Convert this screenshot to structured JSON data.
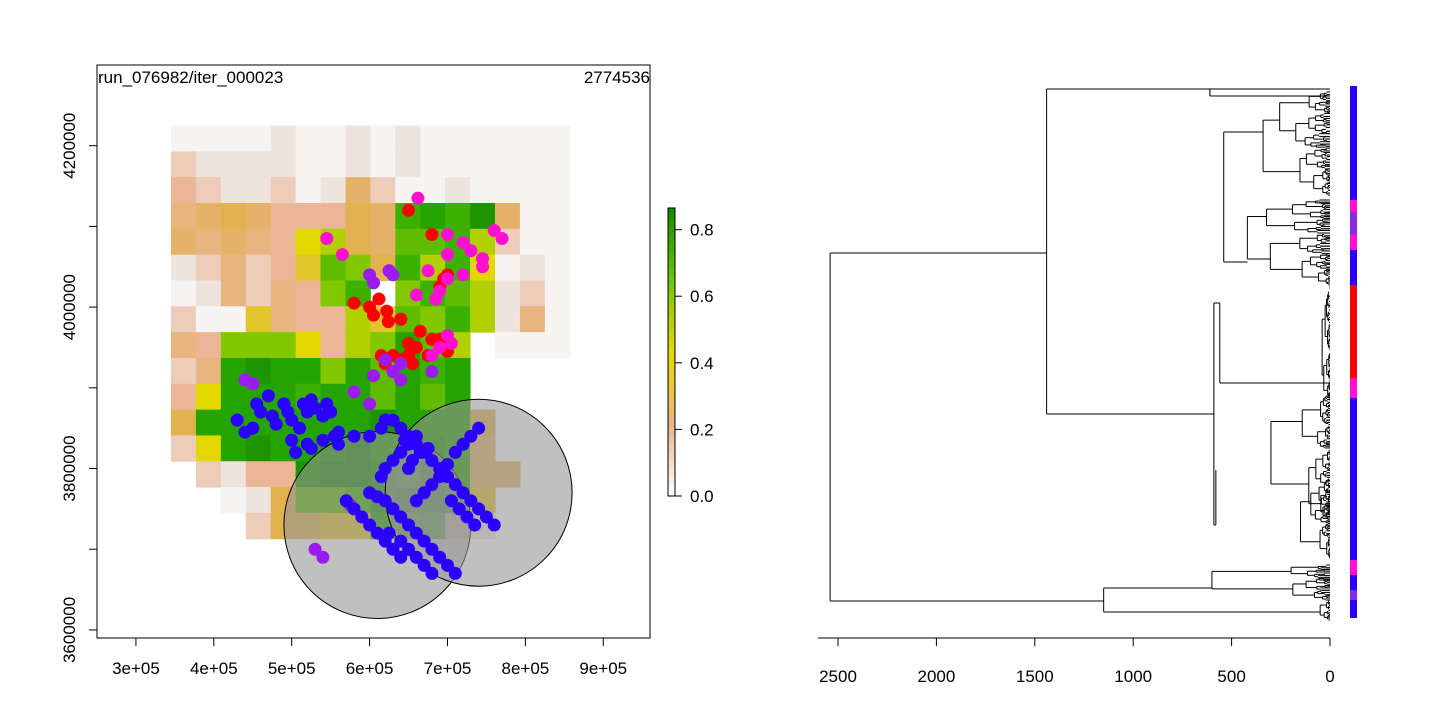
{
  "map_panel": {
    "label_left": "run_076982/iter_000023",
    "label_right": "2774536",
    "x_ticks": [
      "3e+05",
      "4e+05",
      "5e+05",
      "6e+05",
      "7e+05",
      "8e+05",
      "9e+05"
    ],
    "y_ticks": [
      "3600000",
      "3800000",
      "4000000",
      "4200000"
    ],
    "legend_ticks": [
      "0.0",
      "0.2",
      "0.4",
      "0.6",
      "0.8"
    ],
    "colors": {
      "low": "#f2f2f2",
      "mid_low": "#e8b68c",
      "mid": "#e6d800",
      "high": "#1a8a00"
    }
  },
  "dendro_panel": {
    "x_ticks": [
      "2500",
      "2000",
      "1500",
      "1000",
      "500",
      "0"
    ],
    "bar_colors": [
      "#2200ff",
      "#ff0000",
      "#ff00cc",
      "#8a2be2"
    ]
  },
  "chart_data": [
    {
      "type": "heatmap",
      "title": "",
      "xlim": [
        250000,
        960000
      ],
      "ylim": [
        3590000,
        4300000
      ],
      "cell_size": [
        32000,
        32000
      ],
      "x_origin": 345000,
      "y_top": 4225000,
      "value_range": [
        0,
        0.85
      ],
      "grid": [
        "0000000000000000",
        "0000000000000000",
        "0000000000000000",
        "0000000000000000",
        "0000000000000000",
        "0000000000000000",
        "0000000000000000",
        "0000000000000000",
        "0000000000000000",
        "0000000000000000",
        "0000000000000000",
        "0000000000000000",
        "0000000000000000",
        "0000000000000000",
        "0000000000000000",
        "0000000000000000"
      ],
      "cells": [
        [
          0.05,
          0.05,
          0.05,
          0.05,
          0.1,
          0.05,
          0.05,
          0.1,
          0.05,
          0.1,
          0.05,
          0.05,
          0.05,
          0.05,
          0.05,
          0.05
        ],
        [
          0.15,
          0.1,
          0.1,
          0.1,
          0.1,
          0.05,
          0.05,
          0.1,
          0.05,
          0.1,
          0.05,
          0.05,
          0.05,
          0.05,
          0.05,
          0.05
        ],
        [
          0.2,
          0.15,
          0.1,
          0.1,
          0.15,
          0.05,
          0.1,
          0.3,
          0.15,
          0.05,
          0.05,
          0.1,
          0.05,
          0.05,
          0.05,
          0.05
        ],
        [
          0.25,
          0.3,
          0.35,
          0.3,
          0.2,
          0.2,
          0.2,
          0.35,
          0.3,
          0.65,
          0.7,
          0.65,
          0.75,
          0.3,
          0.05,
          0.05
        ],
        [
          0.3,
          0.25,
          0.3,
          0.25,
          0.2,
          0.45,
          0.5,
          0.35,
          0.3,
          0.6,
          0.6,
          0.65,
          0.5,
          0.15,
          0.05,
          0.05
        ],
        [
          0.1,
          0.15,
          0.25,
          0.15,
          0.2,
          0.4,
          0.6,
          0.55,
          0.35,
          0.65,
          0.5,
          0.65,
          0.45,
          0.05,
          0.1,
          0.05
        ],
        [
          0.05,
          0.1,
          0.25,
          0.15,
          0.25,
          0.2,
          0.55,
          0.65,
          0.0,
          0.55,
          0.65,
          0.6,
          0.5,
          0.1,
          0.15,
          0.05
        ],
        [
          0.15,
          0.05,
          0.05,
          0.4,
          0.25,
          0.2,
          0.2,
          0.5,
          0.4,
          0.6,
          0.55,
          0.65,
          0.5,
          0.1,
          0.25,
          0.05
        ],
        [
          0.25,
          0.2,
          0.55,
          0.55,
          0.55,
          0.45,
          0.2,
          0.5,
          0.55,
          0.7,
          0.6,
          0.5,
          0.0,
          0.05,
          0.05,
          0.05
        ],
        [
          0.15,
          0.25,
          0.7,
          0.75,
          0.7,
          0.7,
          0.55,
          0.7,
          0.6,
          0.7,
          0.65,
          0.7,
          0.0,
          0.0,
          0.0,
          0.0
        ],
        [
          0.2,
          0.45,
          0.7,
          0.7,
          0.7,
          0.65,
          0.7,
          0.7,
          0.6,
          0.7,
          0.6,
          0.7,
          0.0,
          0.0,
          0.0,
          0.0
        ],
        [
          0.35,
          0.7,
          0.7,
          0.7,
          0.7,
          0.7,
          0.7,
          0.7,
          0.75,
          0.7,
          0.7,
          0.7,
          0.35,
          0.0,
          0.0,
          0.0
        ],
        [
          0.15,
          0.45,
          0.7,
          0.75,
          0.7,
          0.7,
          0.75,
          0.8,
          0.7,
          0.7,
          0.75,
          0.7,
          0.3,
          0.0,
          0.0,
          0.0
        ],
        [
          0.0,
          0.15,
          0.1,
          0.2,
          0.2,
          0.75,
          0.8,
          0.8,
          0.75,
          0.7,
          0.8,
          0.7,
          0.3,
          0.3,
          0.0,
          0.0
        ],
        [
          0.0,
          0.0,
          0.05,
          0.1,
          0.35,
          0.6,
          0.6,
          0.65,
          0.75,
          0.8,
          0.8,
          0.75,
          0.4,
          0.0,
          0.0,
          0.0
        ],
        [
          0.0,
          0.0,
          0.0,
          0.15,
          0.35,
          0.35,
          0.4,
          0.4,
          0.7,
          0.65,
          0.7,
          0.15,
          0.1,
          0.0,
          0.0,
          0.0
        ]
      ],
      "circles": [
        {
          "cx": 610000,
          "cy": 3730000,
          "r": 120000
        },
        {
          "cx": 740000,
          "cy": 3770000,
          "r": 120000
        }
      ],
      "points": {
        "red": [
          [
            650,
            4120
          ],
          [
            612,
            4010
          ],
          [
            622,
            3995
          ],
          [
            624,
            3982
          ],
          [
            640,
            3985
          ],
          [
            600,
            4000
          ],
          [
            580,
            4005
          ],
          [
            605,
            3990
          ],
          [
            650,
            3955
          ],
          [
            660,
            3950
          ],
          [
            675,
            3940
          ],
          [
            665,
            3970
          ],
          [
            680,
            3960
          ],
          [
            700,
            3945
          ],
          [
            690,
            3960
          ],
          [
            650,
            3940
          ],
          [
            640,
            3935
          ],
          [
            655,
            3930
          ],
          [
            630,
            3940
          ],
          [
            620,
            3930
          ],
          [
            615,
            3940
          ],
          [
            690,
            4025
          ],
          [
            695,
            4035
          ],
          [
            700,
            4040
          ],
          [
            680,
            4090
          ]
        ],
        "magenta": [
          [
            662,
            4135
          ],
          [
            545,
            4085
          ],
          [
            565,
            4065
          ],
          [
            625,
            4045
          ],
          [
            700,
            4065
          ],
          [
            720,
            4080
          ],
          [
            730,
            4070
          ],
          [
            745,
            4060
          ],
          [
            760,
            4095
          ],
          [
            770,
            4085
          ],
          [
            745,
            4050
          ],
          [
            720,
            4040
          ],
          [
            700,
            4035
          ],
          [
            690,
            4020
          ],
          [
            685,
            4010
          ],
          [
            700,
            3965
          ],
          [
            705,
            3955
          ],
          [
            690,
            3950
          ],
          [
            680,
            3940
          ],
          [
            660,
            4015
          ],
          [
            675,
            4045
          ],
          [
            700,
            4090
          ]
        ],
        "purple": [
          [
            600,
            4040
          ],
          [
            605,
            4030
          ],
          [
            630,
            4040
          ],
          [
            625,
            4045
          ],
          [
            640,
            3930
          ],
          [
            680,
            3920
          ],
          [
            620,
            3935
          ],
          [
            630,
            3920
          ],
          [
            640,
            3910
          ],
          [
            605,
            3915
          ],
          [
            580,
            3895
          ],
          [
            600,
            3880
          ],
          [
            440,
            3910
          ],
          [
            450,
            3905
          ],
          [
            575,
            3755
          ],
          [
            530,
            3700
          ],
          [
            540,
            3690
          ]
        ],
        "blue": [
          [
            430,
            3860
          ],
          [
            440,
            3845
          ],
          [
            450,
            3850
          ],
          [
            455,
            3880
          ],
          [
            460,
            3870
          ],
          [
            470,
            3890
          ],
          [
            475,
            3865
          ],
          [
            480,
            3855
          ],
          [
            490,
            3880
          ],
          [
            495,
            3870
          ],
          [
            500,
            3860
          ],
          [
            510,
            3850
          ],
          [
            515,
            3880
          ],
          [
            520,
            3870
          ],
          [
            525,
            3885
          ],
          [
            530,
            3875
          ],
          [
            540,
            3865
          ],
          [
            545,
            3880
          ],
          [
            550,
            3870
          ],
          [
            555,
            3840
          ],
          [
            560,
            3830
          ],
          [
            520,
            3830
          ],
          [
            525,
            3825
          ],
          [
            500,
            3835
          ],
          [
            505,
            3820
          ],
          [
            540,
            3835
          ],
          [
            560,
            3845
          ],
          [
            580,
            3840
          ],
          [
            600,
            3840
          ],
          [
            615,
            3850
          ],
          [
            620,
            3860
          ],
          [
            630,
            3860
          ],
          [
            640,
            3850
          ],
          [
            645,
            3835
          ],
          [
            650,
            3840
          ],
          [
            660,
            3830
          ],
          [
            670,
            3820
          ],
          [
            680,
            3810
          ],
          [
            690,
            3800
          ],
          [
            700,
            3790
          ],
          [
            710,
            3780
          ],
          [
            720,
            3770
          ],
          [
            730,
            3760
          ],
          [
            740,
            3750
          ],
          [
            750,
            3740
          ],
          [
            760,
            3730
          ],
          [
            700,
            3805
          ],
          [
            710,
            3820
          ],
          [
            720,
            3830
          ],
          [
            730,
            3840
          ],
          [
            740,
            3850
          ],
          [
            705,
            3760
          ],
          [
            715,
            3750
          ],
          [
            725,
            3740
          ],
          [
            735,
            3730
          ],
          [
            600,
            3770
          ],
          [
            610,
            3765
          ],
          [
            620,
            3760
          ],
          [
            630,
            3750
          ],
          [
            640,
            3740
          ],
          [
            650,
            3730
          ],
          [
            660,
            3720
          ],
          [
            670,
            3710
          ],
          [
            680,
            3700
          ],
          [
            690,
            3690
          ],
          [
            700,
            3680
          ],
          [
            710,
            3670
          ],
          [
            640,
            3710
          ],
          [
            650,
            3700
          ],
          [
            660,
            3690
          ],
          [
            670,
            3680
          ],
          [
            680,
            3670
          ],
          [
            625,
            3720
          ],
          [
            630,
            3700
          ],
          [
            640,
            3690
          ],
          [
            615,
            3790
          ],
          [
            620,
            3800
          ],
          [
            630,
            3810
          ],
          [
            640,
            3820
          ],
          [
            650,
            3830
          ],
          [
            660,
            3840
          ],
          [
            570,
            3760
          ],
          [
            580,
            3750
          ],
          [
            590,
            3740
          ],
          [
            600,
            3730
          ],
          [
            610,
            3720
          ],
          [
            620,
            3710
          ],
          [
            660,
            3760
          ],
          [
            670,
            3770
          ],
          [
            680,
            3780
          ],
          [
            690,
            3790
          ],
          [
            650,
            3800
          ],
          [
            655,
            3810
          ],
          [
            665,
            3820
          ],
          [
            675,
            3825
          ]
        ]
      }
    },
    {
      "type": "dendrogram",
      "title": "",
      "xlim": [
        2600,
        0
      ],
      "x_ticks": [
        2500,
        2000,
        1500,
        1000,
        500,
        0
      ],
      "merge_heights": {
        "root": 2540,
        "upper_main": 1440,
        "lower_main": 1150,
        "upper_a": 1430,
        "upper_a_top": 610,
        "upper_a_mid": 580,
        "upper_b": 590
      }
    }
  ]
}
